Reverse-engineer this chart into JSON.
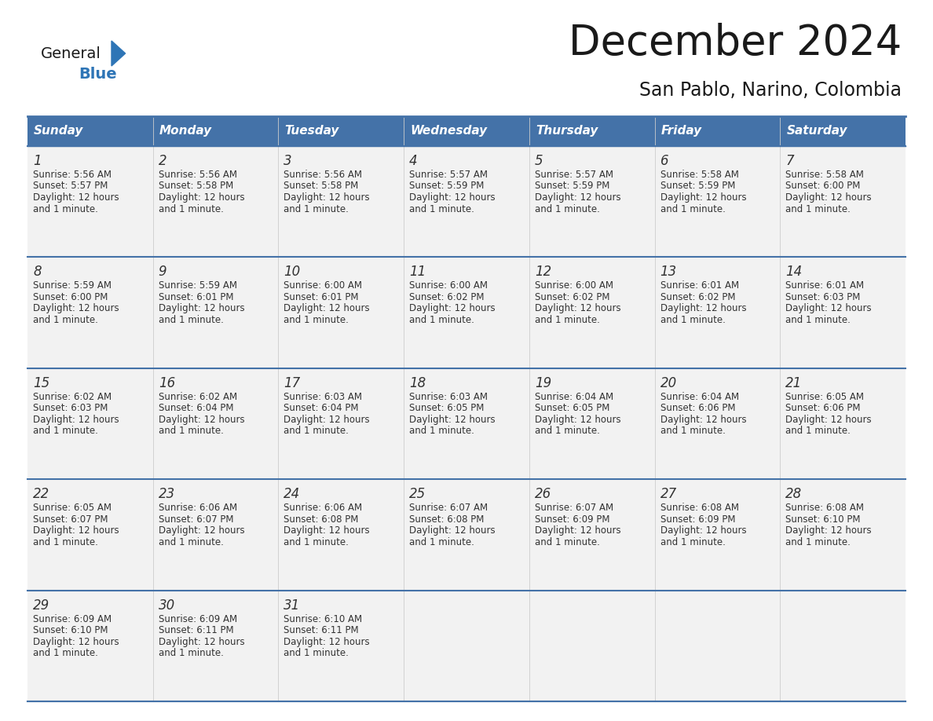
{
  "title": "December 2024",
  "subtitle": "San Pablo, Narino, Colombia",
  "header_bg": "#4472a8",
  "header_text_color": "#FFFFFF",
  "cell_bg_light": "#f2f2f2",
  "cell_bg_white": "#FFFFFF",
  "border_color": "#4472a8",
  "text_color": "#333333",
  "days_of_week": [
    "Sunday",
    "Monday",
    "Tuesday",
    "Wednesday",
    "Thursday",
    "Friday",
    "Saturday"
  ],
  "weeks": [
    [
      {
        "day": "1",
        "sunrise": "5:56 AM",
        "sunset": "5:57 PM",
        "daylight": "and 1 minute."
      },
      {
        "day": "2",
        "sunrise": "5:56 AM",
        "sunset": "5:58 PM",
        "daylight": "and 1 minute."
      },
      {
        "day": "3",
        "sunrise": "5:56 AM",
        "sunset": "5:58 PM",
        "daylight": "and 1 minute."
      },
      {
        "day": "4",
        "sunrise": "5:57 AM",
        "sunset": "5:59 PM",
        "daylight": "and 1 minute."
      },
      {
        "day": "5",
        "sunrise": "5:57 AM",
        "sunset": "5:59 PM",
        "daylight": "and 1 minute."
      },
      {
        "day": "6",
        "sunrise": "5:58 AM",
        "sunset": "5:59 PM",
        "daylight": "and 1 minute."
      },
      {
        "day": "7",
        "sunrise": "5:58 AM",
        "sunset": "6:00 PM",
        "daylight": "and 1 minute."
      }
    ],
    [
      {
        "day": "8",
        "sunrise": "5:59 AM",
        "sunset": "6:00 PM",
        "daylight": "and 1 minute."
      },
      {
        "day": "9",
        "sunrise": "5:59 AM",
        "sunset": "6:01 PM",
        "daylight": "and 1 minute."
      },
      {
        "day": "10",
        "sunrise": "6:00 AM",
        "sunset": "6:01 PM",
        "daylight": "and 1 minute."
      },
      {
        "day": "11",
        "sunrise": "6:00 AM",
        "sunset": "6:02 PM",
        "daylight": "and 1 minute."
      },
      {
        "day": "12",
        "sunrise": "6:00 AM",
        "sunset": "6:02 PM",
        "daylight": "and 1 minute."
      },
      {
        "day": "13",
        "sunrise": "6:01 AM",
        "sunset": "6:02 PM",
        "daylight": "and 1 minute."
      },
      {
        "day": "14",
        "sunrise": "6:01 AM",
        "sunset": "6:03 PM",
        "daylight": "and 1 minute."
      }
    ],
    [
      {
        "day": "15",
        "sunrise": "6:02 AM",
        "sunset": "6:03 PM",
        "daylight": "and 1 minute."
      },
      {
        "day": "16",
        "sunrise": "6:02 AM",
        "sunset": "6:04 PM",
        "daylight": "and 1 minute."
      },
      {
        "day": "17",
        "sunrise": "6:03 AM",
        "sunset": "6:04 PM",
        "daylight": "and 1 minute."
      },
      {
        "day": "18",
        "sunrise": "6:03 AM",
        "sunset": "6:05 PM",
        "daylight": "and 1 minute."
      },
      {
        "day": "19",
        "sunrise": "6:04 AM",
        "sunset": "6:05 PM",
        "daylight": "and 1 minute."
      },
      {
        "day": "20",
        "sunrise": "6:04 AM",
        "sunset": "6:06 PM",
        "daylight": "and 1 minute."
      },
      {
        "day": "21",
        "sunrise": "6:05 AM",
        "sunset": "6:06 PM",
        "daylight": "and 1 minute."
      }
    ],
    [
      {
        "day": "22",
        "sunrise": "6:05 AM",
        "sunset": "6:07 PM",
        "daylight": "and 1 minute."
      },
      {
        "day": "23",
        "sunrise": "6:06 AM",
        "sunset": "6:07 PM",
        "daylight": "and 1 minute."
      },
      {
        "day": "24",
        "sunrise": "6:06 AM",
        "sunset": "6:08 PM",
        "daylight": "and 1 minute."
      },
      {
        "day": "25",
        "sunrise": "6:07 AM",
        "sunset": "6:08 PM",
        "daylight": "and 1 minute."
      },
      {
        "day": "26",
        "sunrise": "6:07 AM",
        "sunset": "6:09 PM",
        "daylight": "and 1 minute."
      },
      {
        "day": "27",
        "sunrise": "6:08 AM",
        "sunset": "6:09 PM",
        "daylight": "and 1 minute."
      },
      {
        "day": "28",
        "sunrise": "6:08 AM",
        "sunset": "6:10 PM",
        "daylight": "and 1 minute."
      }
    ],
    [
      {
        "day": "29",
        "sunrise": "6:09 AM",
        "sunset": "6:10 PM",
        "daylight": "and 1 minute."
      },
      {
        "day": "30",
        "sunrise": "6:09 AM",
        "sunset": "6:11 PM",
        "daylight": "and 1 minute."
      },
      {
        "day": "31",
        "sunrise": "6:10 AM",
        "sunset": "6:11 PM",
        "daylight": "and 1 minute."
      },
      null,
      null,
      null,
      null
    ]
  ],
  "logo_general_color": "#1a1a1a",
  "logo_blue_color": "#2E75B6",
  "triangle_color": "#2E75B6"
}
